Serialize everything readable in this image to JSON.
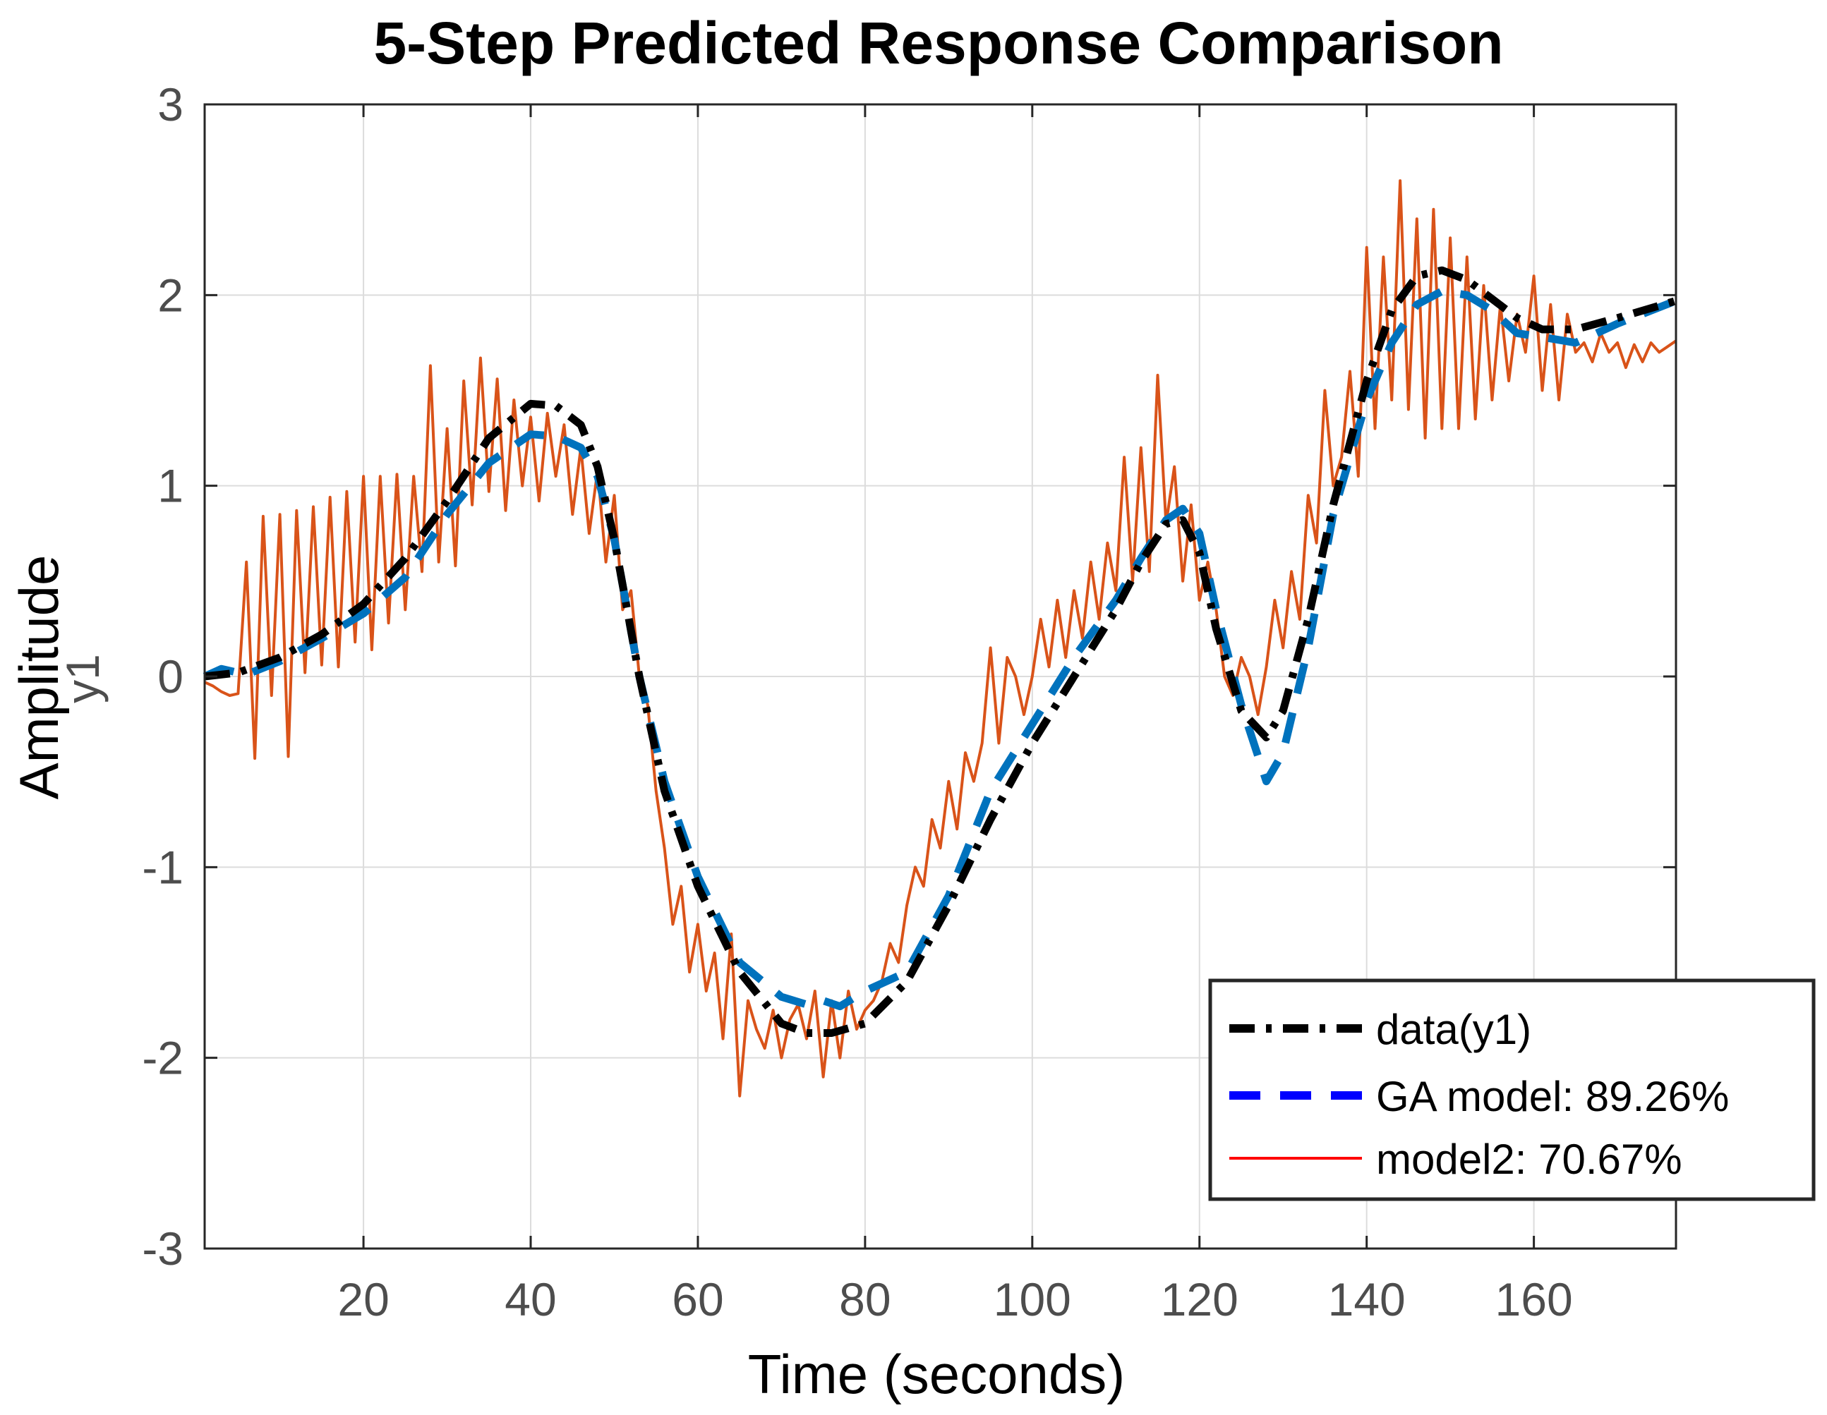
{
  "chart_data": {
    "type": "line",
    "title": "5-Step Predicted Response Comparison",
    "xlabel": "Time (seconds)",
    "ylabel": "Amplitude",
    "ylabel_sub": "y1",
    "xlim": [
      1,
      177
    ],
    "ylim": [
      -3,
      3
    ],
    "xticks": [
      20,
      40,
      60,
      80,
      100,
      120,
      140,
      160
    ],
    "yticks": [
      -3,
      -2,
      -1,
      0,
      1,
      2,
      3
    ],
    "grid": true,
    "legend_position": "bottom-right",
    "series": [
      {
        "name": "data(y1)",
        "color": "#000000",
        "style": "dash-dot",
        "x": [
          1,
          5,
          10,
          15,
          20,
          25,
          30,
          35,
          40,
          43,
          46,
          48,
          50,
          53,
          56,
          60,
          65,
          70,
          73,
          76,
          80,
          85,
          90,
          95,
          100,
          105,
          110,
          113,
          116,
          118,
          120,
          122,
          125,
          128,
          130,
          133,
          136,
          140,
          143,
          146,
          149,
          152,
          155,
          158,
          161,
          165,
          170,
          177
        ],
        "y": [
          0.0,
          0.02,
          0.1,
          0.22,
          0.38,
          0.62,
          0.92,
          1.25,
          1.43,
          1.42,
          1.32,
          1.1,
          0.72,
          0.0,
          -0.6,
          -1.1,
          -1.55,
          -1.82,
          -1.87,
          -1.87,
          -1.82,
          -1.6,
          -1.2,
          -0.75,
          -0.35,
          0.0,
          0.35,
          0.6,
          0.8,
          0.82,
          0.65,
          0.25,
          -0.18,
          -0.32,
          -0.18,
          0.3,
          0.9,
          1.55,
          1.92,
          2.1,
          2.13,
          2.08,
          1.98,
          1.88,
          1.82,
          1.82,
          1.88,
          1.97
        ]
      },
      {
        "name": "GA model: 89.26%",
        "color": "#0072bd",
        "style": "dashed",
        "x": [
          1,
          3,
          6,
          10,
          15,
          20,
          25,
          30,
          35,
          40,
          43,
          46,
          48,
          50,
          53,
          56,
          60,
          65,
          70,
          73,
          75,
          77,
          80,
          85,
          90,
          95,
          100,
          105,
          110,
          113,
          116,
          118,
          120,
          122,
          125,
          128,
          130,
          133,
          136,
          140,
          143,
          146,
          149,
          152,
          155,
          158,
          161,
          165,
          170,
          177
        ],
        "y": [
          0.0,
          0.04,
          0.01,
          0.08,
          0.2,
          0.33,
          0.52,
          0.85,
          1.12,
          1.27,
          1.26,
          1.2,
          1.05,
          0.72,
          0.0,
          -0.55,
          -1.05,
          -1.5,
          -1.68,
          -1.72,
          -1.7,
          -1.73,
          -1.65,
          -1.55,
          -1.15,
          -0.6,
          -0.25,
          0.1,
          0.4,
          0.62,
          0.82,
          0.88,
          0.75,
          0.35,
          -0.15,
          -0.55,
          -0.4,
          0.15,
          0.85,
          1.45,
          1.75,
          1.95,
          2.02,
          2.0,
          1.92,
          1.8,
          1.78,
          1.75,
          1.85,
          1.97
        ]
      },
      {
        "name": "model2: 70.67%",
        "color": "#d95319",
        "style": "solid",
        "x": [
          1,
          2,
          3,
          4,
          5,
          6,
          7,
          8,
          9,
          10,
          11,
          12,
          13,
          14,
          15,
          16,
          17,
          18,
          19,
          20,
          21,
          22,
          23,
          24,
          25,
          26,
          27,
          28,
          29,
          30,
          31,
          32,
          33,
          34,
          35,
          36,
          37,
          38,
          39,
          40,
          41,
          42,
          43,
          44,
          45,
          46,
          47,
          48,
          49,
          50,
          51,
          52,
          53,
          54,
          55,
          56,
          57,
          58,
          59,
          60,
          61,
          62,
          63,
          64,
          65,
          66,
          67,
          68,
          69,
          70,
          71,
          72,
          73,
          74,
          75,
          76,
          77,
          78,
          79,
          80,
          81,
          82,
          83,
          84,
          85,
          86,
          87,
          88,
          89,
          90,
          91,
          92,
          93,
          94,
          95,
          96,
          97,
          98,
          99,
          100,
          101,
          102,
          103,
          104,
          105,
          106,
          107,
          108,
          109,
          110,
          111,
          112,
          113,
          114,
          115,
          116,
          117,
          118,
          119,
          120,
          121,
          122,
          123,
          124,
          125,
          126,
          127,
          128,
          129,
          130,
          131,
          132,
          133,
          134,
          135,
          136,
          137,
          138,
          139,
          140,
          141,
          142,
          143,
          144,
          145,
          146,
          147,
          148,
          149,
          150,
          151,
          152,
          153,
          154,
          155,
          156,
          157,
          158,
          159,
          160,
          161,
          162,
          163,
          164,
          165,
          166,
          167,
          168,
          169,
          170,
          171,
          172,
          173,
          174,
          175,
          176,
          177
        ],
        "y": [
          -0.03,
          -0.05,
          -0.08,
          -0.1,
          -0.09,
          0.6,
          -0.43,
          0.84,
          -0.1,
          0.85,
          -0.42,
          0.87,
          0.02,
          0.89,
          0.06,
          0.94,
          0.05,
          0.97,
          0.18,
          1.05,
          0.14,
          1.05,
          0.28,
          1.06,
          0.35,
          1.05,
          0.55,
          1.63,
          0.6,
          1.3,
          0.58,
          1.55,
          0.9,
          1.67,
          0.97,
          1.56,
          0.87,
          1.45,
          1.0,
          1.36,
          0.92,
          1.38,
          1.05,
          1.32,
          0.85,
          1.2,
          0.75,
          1.08,
          0.6,
          0.95,
          0.35,
          0.45,
          0.0,
          -0.15,
          -0.6,
          -0.9,
          -1.3,
          -1.1,
          -1.55,
          -1.3,
          -1.65,
          -1.45,
          -1.9,
          -1.35,
          -2.2,
          -1.7,
          -1.85,
          -1.95,
          -1.75,
          -2.0,
          -1.8,
          -1.72,
          -1.9,
          -1.65,
          -2.1,
          -1.7,
          -2.0,
          -1.65,
          -1.85,
          -1.75,
          -1.7,
          -1.6,
          -1.4,
          -1.5,
          -1.2,
          -1.0,
          -1.1,
          -0.75,
          -0.9,
          -0.55,
          -0.8,
          -0.4,
          -0.55,
          -0.35,
          0.15,
          -0.35,
          0.1,
          0.0,
          -0.2,
          0.0,
          0.3,
          0.05,
          0.4,
          0.1,
          0.45,
          0.2,
          0.6,
          0.3,
          0.7,
          0.45,
          1.15,
          0.5,
          1.2,
          0.55,
          1.58,
          0.8,
          1.1,
          0.5,
          0.9,
          0.4,
          0.6,
          0.35,
          0.0,
          -0.1,
          0.1,
          0.0,
          -0.2,
          0.05,
          0.4,
          0.15,
          0.55,
          0.3,
          0.95,
          0.7,
          1.5,
          1.0,
          1.15,
          1.6,
          1.05,
          2.25,
          1.3,
          2.2,
          1.45,
          2.6,
          1.4,
          2.4,
          1.25,
          2.45,
          1.3,
          2.3,
          1.3,
          2.2,
          1.35,
          2.05,
          1.45,
          1.95,
          1.55,
          1.9,
          1.7,
          2.1,
          1.5,
          1.95,
          1.45,
          1.9,
          1.7,
          1.75,
          1.65,
          1.8,
          1.7,
          1.75,
          1.62,
          1.74,
          1.65,
          1.75,
          1.7,
          1.73,
          1.76
        ]
      }
    ]
  }
}
